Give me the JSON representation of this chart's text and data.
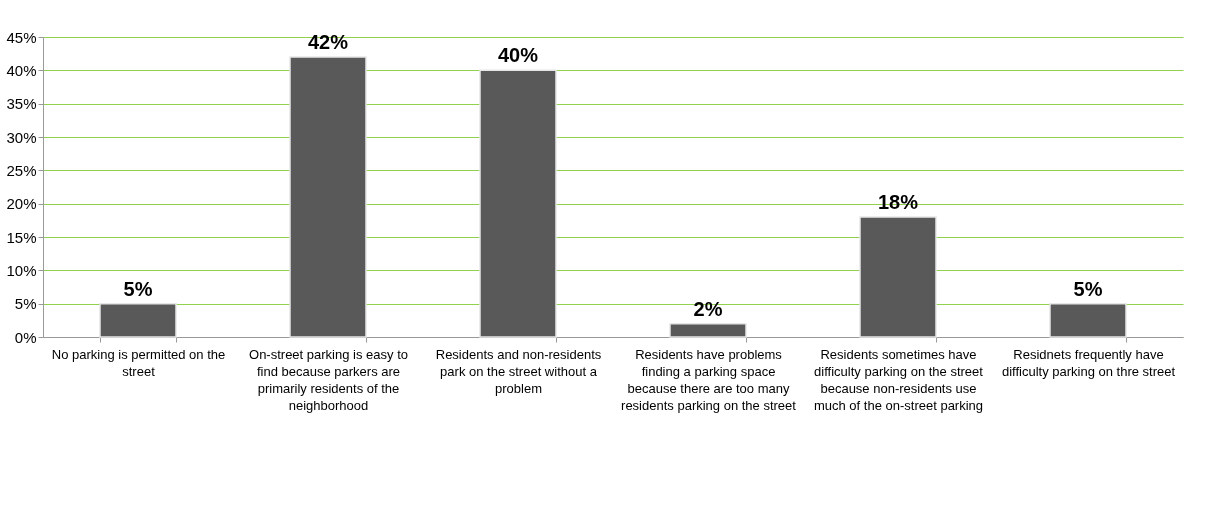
{
  "chart_data": {
    "type": "bar",
    "categories": [
      "No parking is permitted on the street",
      "On-street parking is easy to find because parkers are primarily residents of the neighborhood",
      "Residents and non-residents park on the street without a problem",
      "Residents have problems finding a parking space because there are too many residents parking on the street",
      "Residents sometimes have difficulty parking on the street because non-residents use much of the on-street parking",
      "Residnets frequently have difficulty parking on thre street"
    ],
    "values": [
      5,
      42,
      40,
      2,
      18,
      5
    ],
    "value_labels": [
      "5%",
      "42%",
      "40%",
      "2%",
      "18%",
      "5%"
    ],
    "color": "#595959",
    "ylim": [
      0,
      45
    ],
    "yticks": [
      {
        "value": 0,
        "label": "0%"
      },
      {
        "value": 5,
        "label": "5%"
      },
      {
        "value": 10,
        "label": "10%"
      },
      {
        "value": 15,
        "label": "15%"
      },
      {
        "value": 20,
        "label": "20%"
      },
      {
        "value": 25,
        "label": "25%"
      },
      {
        "value": 30,
        "label": "30%"
      },
      {
        "value": 35,
        "label": "35%"
      },
      {
        "value": 40,
        "label": "40%"
      },
      {
        "value": 45,
        "label": "45%"
      }
    ],
    "grid": "y"
  }
}
